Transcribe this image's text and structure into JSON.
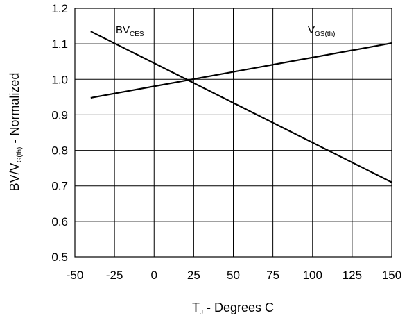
{
  "chart_data": {
    "type": "line",
    "xlabel": {
      "main": "T",
      "sub": "J",
      "rest": " - Degrees C"
    },
    "ylabel": {
      "main": "BV/V",
      "sub": "G(th)",
      "rest": " - Normalized"
    },
    "xlim": [
      -50,
      150
    ],
    "ylim": [
      0.5,
      1.2
    ],
    "xticks": [
      -50,
      -25,
      0,
      25,
      50,
      75,
      100,
      125,
      150
    ],
    "yticks": [
      0.5,
      0.6,
      0.7,
      0.8,
      0.9,
      1.0,
      1.1,
      1.2
    ],
    "xtick_labels": [
      "-50",
      "-25",
      "0",
      "25",
      "50",
      "75",
      "100",
      "125",
      "150"
    ],
    "ytick_labels": [
      "0.5",
      "0.6",
      "0.7",
      "0.8",
      "0.9",
      "1.0",
      "1.1",
      "1.2"
    ],
    "grid": true,
    "series": [
      {
        "name": "BV_CES",
        "label_main": "BV",
        "label_sub": "CES",
        "x": [
          -40,
          150
        ],
        "y": [
          1.135,
          0.71
        ]
      },
      {
        "name": "V_GS(th)",
        "label_main": "V",
        "label_sub": "GS(th)",
        "x": [
          -40,
          150
        ],
        "y": [
          0.948,
          1.102
        ]
      }
    ]
  }
}
